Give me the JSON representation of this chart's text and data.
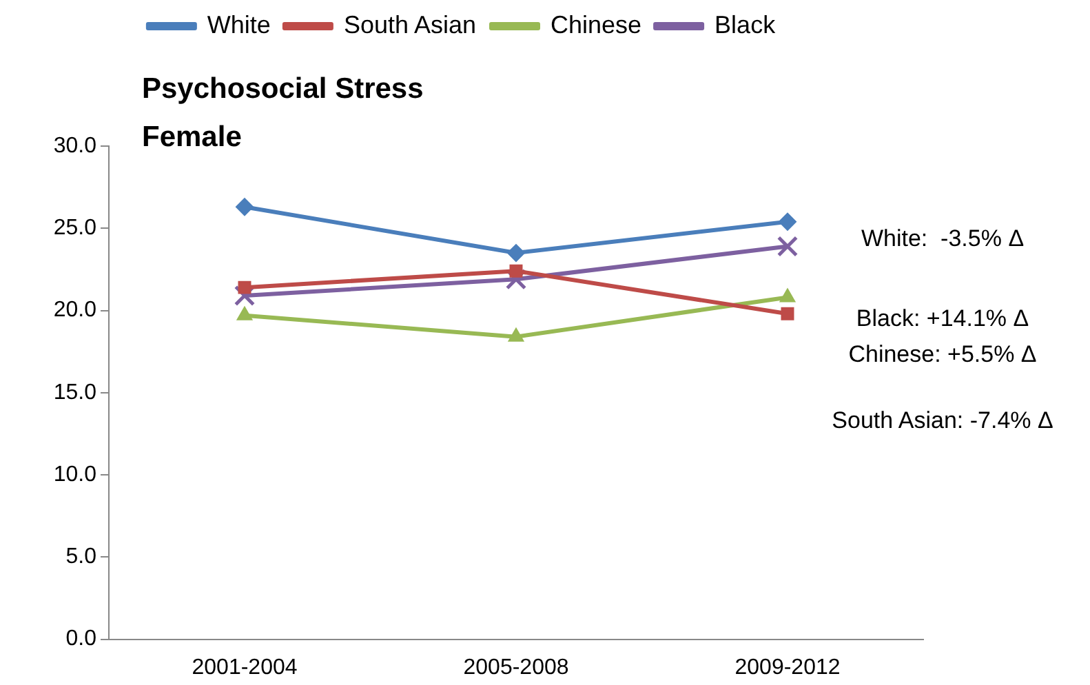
{
  "chart_data": {
    "type": "line",
    "title": "Psychosocial Stress",
    "subtitle": "Female",
    "categories": [
      "2001-2004",
      "2005-2008",
      "2009-2012"
    ],
    "series": [
      {
        "name": "White",
        "color": "#4a7ebb",
        "marker": "diamond",
        "values": [
          26.3,
          23.5,
          25.4
        ]
      },
      {
        "name": "South Asian",
        "color": "#be4b48",
        "marker": "square",
        "values": [
          21.4,
          22.4,
          19.8
        ]
      },
      {
        "name": "Chinese",
        "color": "#98b954",
        "marker": "triangle",
        "values": [
          19.7,
          18.4,
          20.8
        ]
      },
      {
        "name": "Black",
        "color": "#7d60a0",
        "marker": "cross",
        "values": [
          20.9,
          21.9,
          23.9
        ]
      }
    ],
    "ylim": [
      0,
      30
    ],
    "yticks": [
      {
        "value": 0,
        "label": "0.0"
      },
      {
        "value": 5,
        "label": "5.0"
      },
      {
        "value": 10,
        "label": "10.0"
      },
      {
        "value": 15,
        "label": "15.0"
      },
      {
        "value": 20,
        "label": "20.0"
      },
      {
        "value": 25,
        "label": "25.0"
      },
      {
        "value": 30,
        "label": "30.0"
      }
    ],
    "grid": false,
    "legend": "top",
    "line_style": "solid",
    "annotations": [
      "White:  -3.5% Δ",
      "Black: +14.1% Δ",
      "Chinese: +5.5% Δ",
      "South Asian: -7.4% Δ"
    ]
  }
}
